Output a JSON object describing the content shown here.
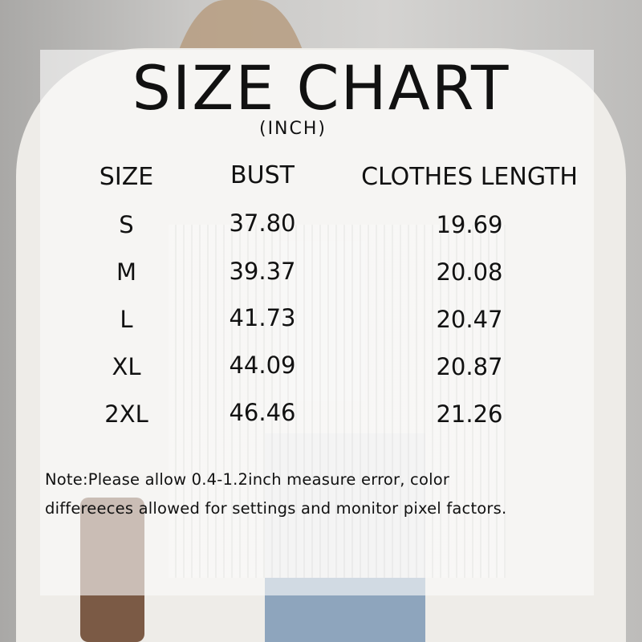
{
  "title": "SIZE CHART",
  "unit": "(INCH)",
  "columns": [
    "SIZE",
    "BUST",
    "CLOTHES LENGTH"
  ],
  "rows": [
    {
      "size": "S",
      "bust": "37.80",
      "length": "19.69"
    },
    {
      "size": "M",
      "bust": "39.37",
      "length": "20.08"
    },
    {
      "size": "L",
      "bust": "41.73",
      "length": "20.47"
    },
    {
      "size": "XL",
      "bust": "44.09",
      "length": "20.87"
    },
    {
      "size": "2XL",
      "bust": "46.46",
      "length": "21.26"
    }
  ],
  "note": {
    "line1": "Note:Please allow 0.4-1.2inch measure error, color",
    "line2": "differeeces allowed for settings and monitor pixel factors."
  }
}
